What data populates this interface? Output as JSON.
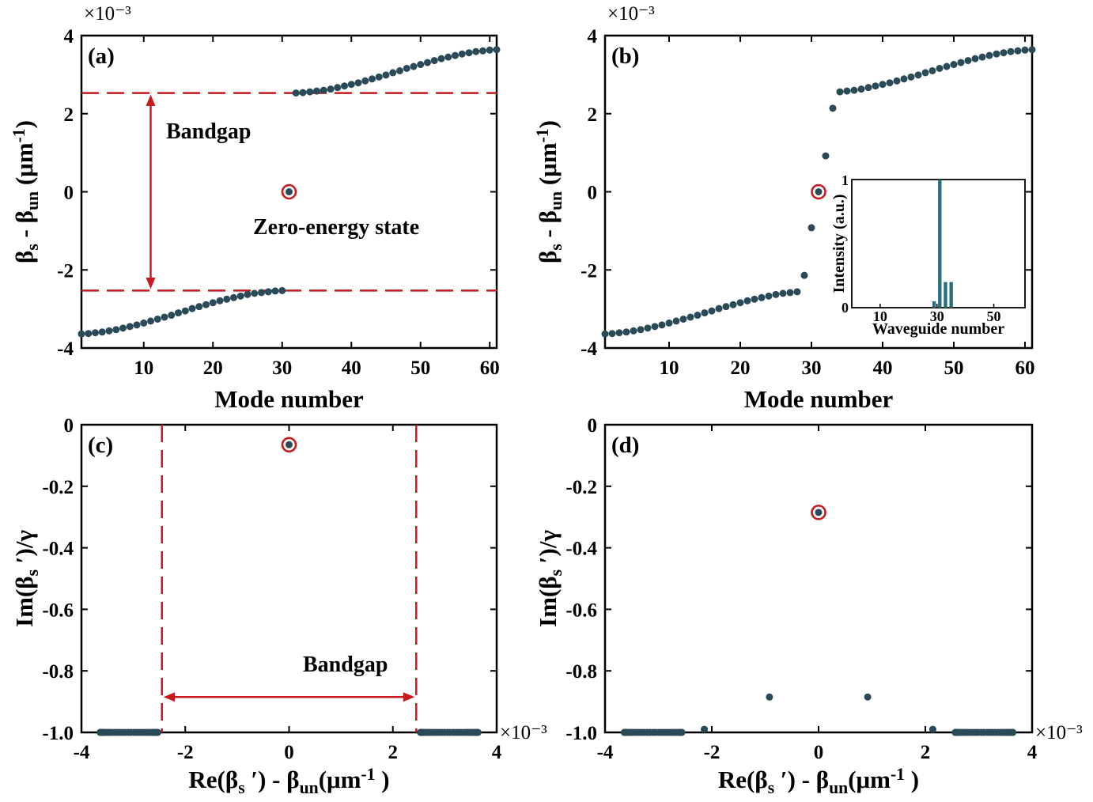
{
  "colors": {
    "dot": "#2b4a57",
    "red": "#c8191f",
    "bar": "#2a6e7c"
  },
  "chart_data": [
    {
      "panel": "(a)",
      "type": "scatter",
      "xlabel": "Mode number",
      "ylabel_parts": [
        "β",
        "s",
        " - β",
        "un",
        " (μm",
        "-1",
        ")"
      ],
      "xlim": [
        1,
        61
      ],
      "xticks": [
        10,
        20,
        30,
        40,
        50,
        60
      ],
      "ylim": [
        -4,
        4
      ],
      "yticks": [
        4,
        2,
        0,
        -2,
        -4
      ],
      "ytick_labels": [
        "4",
        "2",
        "0",
        "-2",
        "-4"
      ],
      "y_exponent": "×10⁻³",
      "x": [
        1,
        2,
        3,
        4,
        5,
        6,
        7,
        8,
        9,
        10,
        11,
        12,
        13,
        14,
        15,
        16,
        17,
        18,
        19,
        20,
        21,
        22,
        23,
        24,
        25,
        26,
        27,
        28,
        29,
        30,
        31,
        32,
        33,
        34,
        35,
        36,
        37,
        38,
        39,
        40,
        41,
        42,
        43,
        44,
        45,
        46,
        47,
        48,
        49,
        50,
        51,
        52,
        53,
        54,
        55,
        56,
        57,
        58,
        59,
        60,
        61
      ],
      "y": [
        -3.64,
        -3.63,
        -3.61,
        -3.59,
        -3.56,
        -3.53,
        -3.49,
        -3.45,
        -3.41,
        -3.36,
        -3.31,
        -3.26,
        -3.21,
        -3.16,
        -3.1,
        -3.05,
        -2.99,
        -2.94,
        -2.89,
        -2.84,
        -2.79,
        -2.75,
        -2.71,
        -2.67,
        -2.63,
        -2.6,
        -2.58,
        -2.56,
        -2.54,
        -2.53,
        0,
        2.53,
        2.54,
        2.56,
        2.58,
        2.6,
        2.63,
        2.67,
        2.71,
        2.75,
        2.79,
        2.84,
        2.89,
        2.94,
        2.99,
        3.05,
        3.1,
        3.16,
        3.21,
        3.26,
        3.31,
        3.36,
        3.41,
        3.45,
        3.49,
        3.53,
        3.56,
        3.59,
        3.61,
        3.63,
        3.64
      ],
      "highlight": {
        "x": 31,
        "y": 0
      },
      "dashed_y": [
        2.53,
        -2.53
      ],
      "arrow": {
        "x": 11,
        "from": 2.53,
        "to": -2.53
      },
      "annotations": [
        "Bandgap",
        "Zero-energy state"
      ]
    },
    {
      "panel": "(b)",
      "type": "scatter",
      "xlabel": "Mode number",
      "ylabel_parts": [
        "β",
        "s",
        " - β",
        "un",
        " (μm",
        "-1",
        ")"
      ],
      "xlim": [
        1,
        61
      ],
      "xticks": [
        10,
        20,
        30,
        40,
        50,
        60
      ],
      "ylim": [
        -4,
        4
      ],
      "yticks": [
        4,
        2,
        0,
        -2,
        -4
      ],
      "ytick_labels": [
        "4",
        "2",
        "0",
        "-2",
        "-4"
      ],
      "y_exponent": "×10⁻³",
      "x": [
        1,
        2,
        3,
        4,
        5,
        6,
        7,
        8,
        9,
        10,
        11,
        12,
        13,
        14,
        15,
        16,
        17,
        18,
        19,
        20,
        21,
        22,
        23,
        24,
        25,
        26,
        27,
        28,
        29,
        30,
        31,
        32,
        33,
        34,
        35,
        36,
        37,
        38,
        39,
        40,
        41,
        42,
        43,
        44,
        45,
        46,
        47,
        48,
        49,
        50,
        51,
        52,
        53,
        54,
        55,
        56,
        57,
        58,
        59,
        60,
        61
      ],
      "y": [
        -3.64,
        -3.63,
        -3.61,
        -3.59,
        -3.56,
        -3.53,
        -3.49,
        -3.45,
        -3.41,
        -3.36,
        -3.31,
        -3.26,
        -3.21,
        -3.16,
        -3.1,
        -3.05,
        -2.99,
        -2.94,
        -2.89,
        -2.84,
        -2.79,
        -2.75,
        -2.71,
        -2.67,
        -2.63,
        -2.6,
        -2.58,
        -2.56,
        -2.14,
        -0.92,
        0,
        0.92,
        2.14,
        2.56,
        2.58,
        2.6,
        2.63,
        2.67,
        2.71,
        2.75,
        2.79,
        2.84,
        2.89,
        2.94,
        2.99,
        3.05,
        3.1,
        3.16,
        3.21,
        3.26,
        3.31,
        3.36,
        3.41,
        3.45,
        3.49,
        3.53,
        3.56,
        3.59,
        3.61,
        3.63,
        3.64
      ],
      "highlight": {
        "x": 31,
        "y": 0
      },
      "inset": {
        "type": "bar",
        "xlabel": "Waveguide number",
        "ylabel": "Intensity (a.u.)",
        "xlim": [
          0,
          61
        ],
        "xticks": [
          10,
          30,
          50
        ],
        "xtick_labels": [
          "10",
          "30",
          "50"
        ],
        "ylim": [
          0,
          1
        ],
        "ytick_labels": [
          "1",
          "0"
        ],
        "x": [
          29,
          31,
          33,
          35
        ],
        "values": [
          0.05,
          1.0,
          0.2,
          0.2
        ]
      }
    },
    {
      "panel": "(c)",
      "type": "scatter",
      "xlabel_parts": [
        "Re(β",
        "s",
        " ′) - β",
        "un",
        "(μm",
        "-1",
        " )"
      ],
      "ylabel_parts": [
        "Im(β",
        "s",
        " ′)/γ"
      ],
      "xlim": [
        -4,
        4
      ],
      "xticks": [
        -4,
        -2,
        0,
        2,
        4
      ],
      "xtick_labels": [
        "-4",
        "-2",
        "0",
        "2",
        "4"
      ],
      "x_exponent": "×10⁻³",
      "ylim": [
        -1.0,
        0
      ],
      "yticks": [
        0,
        -0.2,
        -0.4,
        -0.6,
        -0.8,
        -1.0
      ],
      "ytick_labels": [
        "0",
        "-0.2",
        "-0.4",
        "-0.6",
        "-0.8",
        "-1.0"
      ],
      "x": [
        -3.64,
        -3.63,
        -3.61,
        -3.59,
        -3.56,
        -3.53,
        -3.49,
        -3.45,
        -3.41,
        -3.36,
        -3.31,
        -3.26,
        -3.21,
        -3.16,
        -3.1,
        -3.05,
        -2.99,
        -2.94,
        -2.89,
        -2.84,
        -2.79,
        -2.75,
        -2.71,
        -2.67,
        -2.63,
        -2.6,
        -2.58,
        -2.56,
        -2.54,
        -2.53,
        0,
        2.53,
        2.54,
        2.56,
        2.58,
        2.6,
        2.63,
        2.67,
        2.71,
        2.75,
        2.79,
        2.84,
        2.89,
        2.94,
        2.99,
        3.05,
        3.1,
        3.16,
        3.21,
        3.26,
        3.31,
        3.36,
        3.41,
        3.45,
        3.49,
        3.53,
        3.56,
        3.59,
        3.61,
        3.63,
        3.64
      ],
      "y": [
        -1,
        -1,
        -1,
        -1,
        -1,
        -1,
        -1,
        -1,
        -1,
        -1,
        -1,
        -1,
        -1,
        -1,
        -1,
        -1,
        -1,
        -1,
        -1,
        -1,
        -1,
        -1,
        -1,
        -1,
        -1,
        -1,
        -1,
        -1,
        -1,
        -1,
        -0.065,
        -1,
        -1,
        -1,
        -1,
        -1,
        -1,
        -1,
        -1,
        -1,
        -1,
        -1,
        -1,
        -1,
        -1,
        -1,
        -1,
        -1,
        -1,
        -1,
        -1,
        -1,
        -1,
        -1,
        -1,
        -1,
        -1,
        -1,
        -1,
        -1,
        -1
      ],
      "highlight": {
        "x": 0,
        "y": -0.065
      },
      "dashed_x": [
        -2.45,
        2.45
      ],
      "arrow": {
        "y": -0.885,
        "from": -2.45,
        "to": 2.45
      },
      "annotations": [
        "Bandgap"
      ]
    },
    {
      "panel": "(d)",
      "type": "scatter",
      "xlabel_parts": [
        "Re(β",
        "s",
        " ′) - β",
        "un",
        "(μm",
        "-1",
        " )"
      ],
      "ylabel_parts": [
        "Im(β",
        "s",
        " ′)/γ"
      ],
      "xlim": [
        -4,
        4
      ],
      "xticks": [
        -4,
        -2,
        0,
        2,
        4
      ],
      "xtick_labels": [
        "-4",
        "-2",
        "0",
        "2",
        "4"
      ],
      "x_exponent": "×10⁻³",
      "ylim": [
        -1.0,
        0
      ],
      "yticks": [
        0,
        -0.2,
        -0.4,
        -0.6,
        -0.8,
        -1.0
      ],
      "ytick_labels": [
        "0",
        "-0.2",
        "-0.4",
        "-0.6",
        "-0.8",
        "-1.0"
      ],
      "x": [
        -3.64,
        -3.63,
        -3.61,
        -3.59,
        -3.56,
        -3.53,
        -3.49,
        -3.45,
        -3.41,
        -3.36,
        -3.31,
        -3.26,
        -3.21,
        -3.16,
        -3.1,
        -3.05,
        -2.99,
        -2.94,
        -2.89,
        -2.84,
        -2.79,
        -2.75,
        -2.71,
        -2.67,
        -2.63,
        -2.6,
        -2.58,
        -2.56,
        -2.14,
        -0.92,
        0,
        0.92,
        2.14,
        2.56,
        2.58,
        2.6,
        2.63,
        2.67,
        2.71,
        2.75,
        2.79,
        2.84,
        2.89,
        2.94,
        2.99,
        3.05,
        3.1,
        3.16,
        3.21,
        3.26,
        3.31,
        3.36,
        3.41,
        3.45,
        3.49,
        3.53,
        3.56,
        3.59,
        3.61,
        3.63,
        3.64
      ],
      "y": [
        -1,
        -1,
        -1,
        -1,
        -1,
        -1,
        -1,
        -1,
        -1,
        -1,
        -1,
        -1,
        -1,
        -1,
        -1,
        -1,
        -1,
        -1,
        -1,
        -1,
        -1,
        -1,
        -1,
        -1,
        -1,
        -1,
        -1,
        -1,
        -0.99,
        -0.885,
        -0.285,
        -0.885,
        -0.99,
        -1,
        -1,
        -1,
        -1,
        -1,
        -1,
        -1,
        -1,
        -1,
        -1,
        -1,
        -1,
        -1,
        -1,
        -1,
        -1,
        -1,
        -1,
        -1,
        -1,
        -1,
        -1,
        -1,
        -1,
        -1,
        -1,
        -1,
        -1
      ],
      "highlight": {
        "x": 0,
        "y": -0.285
      }
    }
  ]
}
